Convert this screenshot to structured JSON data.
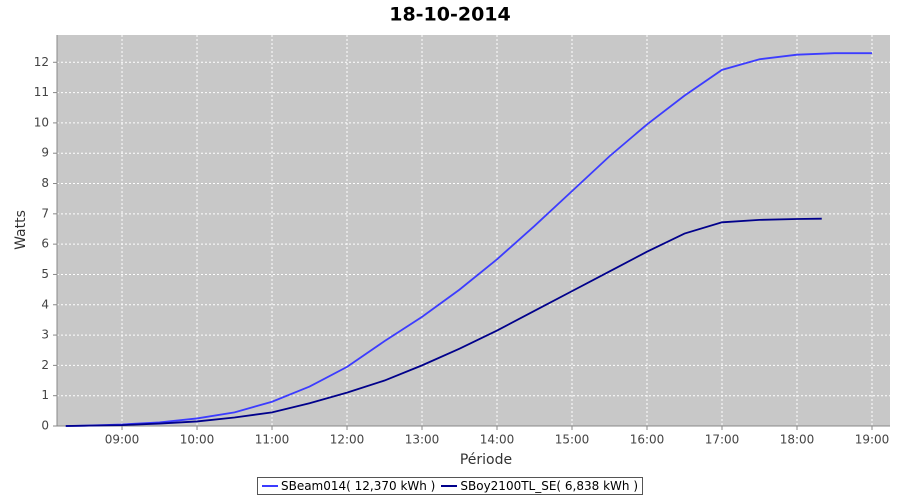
{
  "chart_data": {
    "type": "line",
    "title": "18-10-2014",
    "x_label": "Période",
    "y_label": "Watts",
    "xlim": [
      8.133,
      19.24
    ],
    "ylim": [
      0,
      12.9
    ],
    "xticks": [
      {
        "value": 9,
        "label": "09:00"
      },
      {
        "value": 10,
        "label": "10:00"
      },
      {
        "value": 11,
        "label": "11:00"
      },
      {
        "value": 12,
        "label": "12:00"
      },
      {
        "value": 13,
        "label": "13:00"
      },
      {
        "value": 14,
        "label": "14:00"
      },
      {
        "value": 15,
        "label": "15:00"
      },
      {
        "value": 16,
        "label": "16:00"
      },
      {
        "value": 17,
        "label": "17:00"
      },
      {
        "value": 18,
        "label": "18:00"
      },
      {
        "value": 19,
        "label": "19:00"
      }
    ],
    "yticks": [
      0,
      1,
      2,
      3,
      4,
      5,
      6,
      7,
      8,
      9,
      10,
      11,
      12
    ],
    "grid": true,
    "background": "#c8c8c8",
    "legend": "bottom",
    "series": [
      {
        "name": "SBeam014( 12,370 kWh )",
        "color": "#3c3cff",
        "x": [
          8.25,
          8.5,
          9,
          9.5,
          10,
          10.5,
          11,
          11.5,
          12,
          12.5,
          13,
          13.5,
          14,
          14.5,
          15,
          15.5,
          16,
          16.5,
          17,
          17.5,
          18,
          18.5,
          19
        ],
        "values": [
          0,
          0.01,
          0.05,
          0.12,
          0.25,
          0.45,
          0.8,
          1.3,
          1.95,
          2.8,
          3.6,
          4.5,
          5.5,
          6.6,
          7.75,
          8.9,
          9.95,
          10.9,
          11.75,
          12.1,
          12.25,
          12.3,
          12.3
        ]
      },
      {
        "name": "SBoy2100TL_SE( 6,838 kWh )",
        "color": "#00008b",
        "x": [
          8.25,
          9,
          9.5,
          10,
          10.5,
          11,
          11.5,
          12,
          12.5,
          13,
          13.5,
          14,
          14.5,
          15,
          15.5,
          16,
          16.5,
          17,
          17.5,
          18,
          18.33
        ],
        "values": [
          0,
          0.03,
          0.08,
          0.15,
          0.28,
          0.45,
          0.75,
          1.1,
          1.5,
          2.0,
          2.55,
          3.15,
          3.8,
          4.45,
          5.1,
          5.75,
          6.35,
          6.72,
          6.8,
          6.83,
          6.84
        ]
      }
    ]
  }
}
